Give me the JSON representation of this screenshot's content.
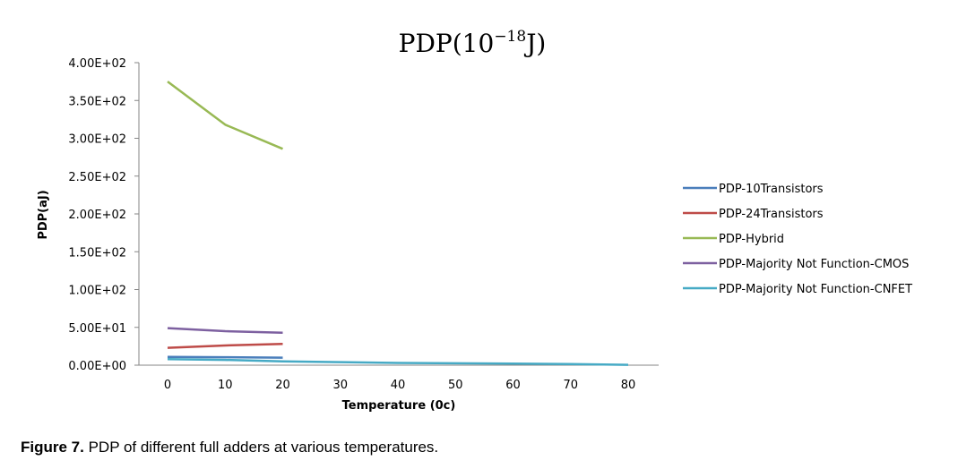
{
  "chart_data": {
    "type": "line",
    "title_base": "PDP(10",
    "title_exp": "−18",
    "title_unit": "J)",
    "xlabel": "Temperature (0c)",
    "ylabel": "PDP(aJ)",
    "xlim": [
      0,
      80
    ],
    "ylim": [
      0,
      400
    ],
    "x_ticks": [
      "0",
      "10",
      "20",
      "30",
      "40",
      "50",
      "60",
      "70",
      "80"
    ],
    "y_ticks": [
      "0.00E+00",
      "5.00E+01",
      "1.00E+02",
      "1.50E+02",
      "2.00E+02",
      "2.50E+02",
      "3.00E+02",
      "3.50E+02",
      "4.00E+02"
    ],
    "grid": false,
    "legend_position": "right",
    "series": [
      {
        "name": "PDP-10Transistors",
        "color": "#4a7ebb",
        "x": [
          0,
          10,
          20
        ],
        "y": [
          11,
          10.5,
          10
        ]
      },
      {
        "name": "PDP-24Transistors",
        "color": "#be4b48",
        "x": [
          0,
          10,
          20
        ],
        "y": [
          23,
          26,
          28
        ]
      },
      {
        "name": "PDP-Hybrid",
        "color": "#98b954",
        "x": [
          0,
          10,
          20
        ],
        "y": [
          375,
          318,
          286
        ]
      },
      {
        "name": "PDP-Majority Not Function-CMOS",
        "color": "#7d60a0",
        "x": [
          0,
          10,
          20
        ],
        "y": [
          49,
          45,
          43
        ]
      },
      {
        "name": "PDP-Majority Not Function-CNFET",
        "color": "#46aac5",
        "x": [
          0,
          10,
          20,
          30,
          40,
          50,
          60,
          70,
          80
        ],
        "y": [
          8,
          7,
          5,
          4,
          3,
          2.5,
          2,
          1.5,
          0.5
        ]
      }
    ]
  },
  "caption": {
    "label": "Figure 7.",
    "text": " PDP of different full adders at various temperatures."
  }
}
